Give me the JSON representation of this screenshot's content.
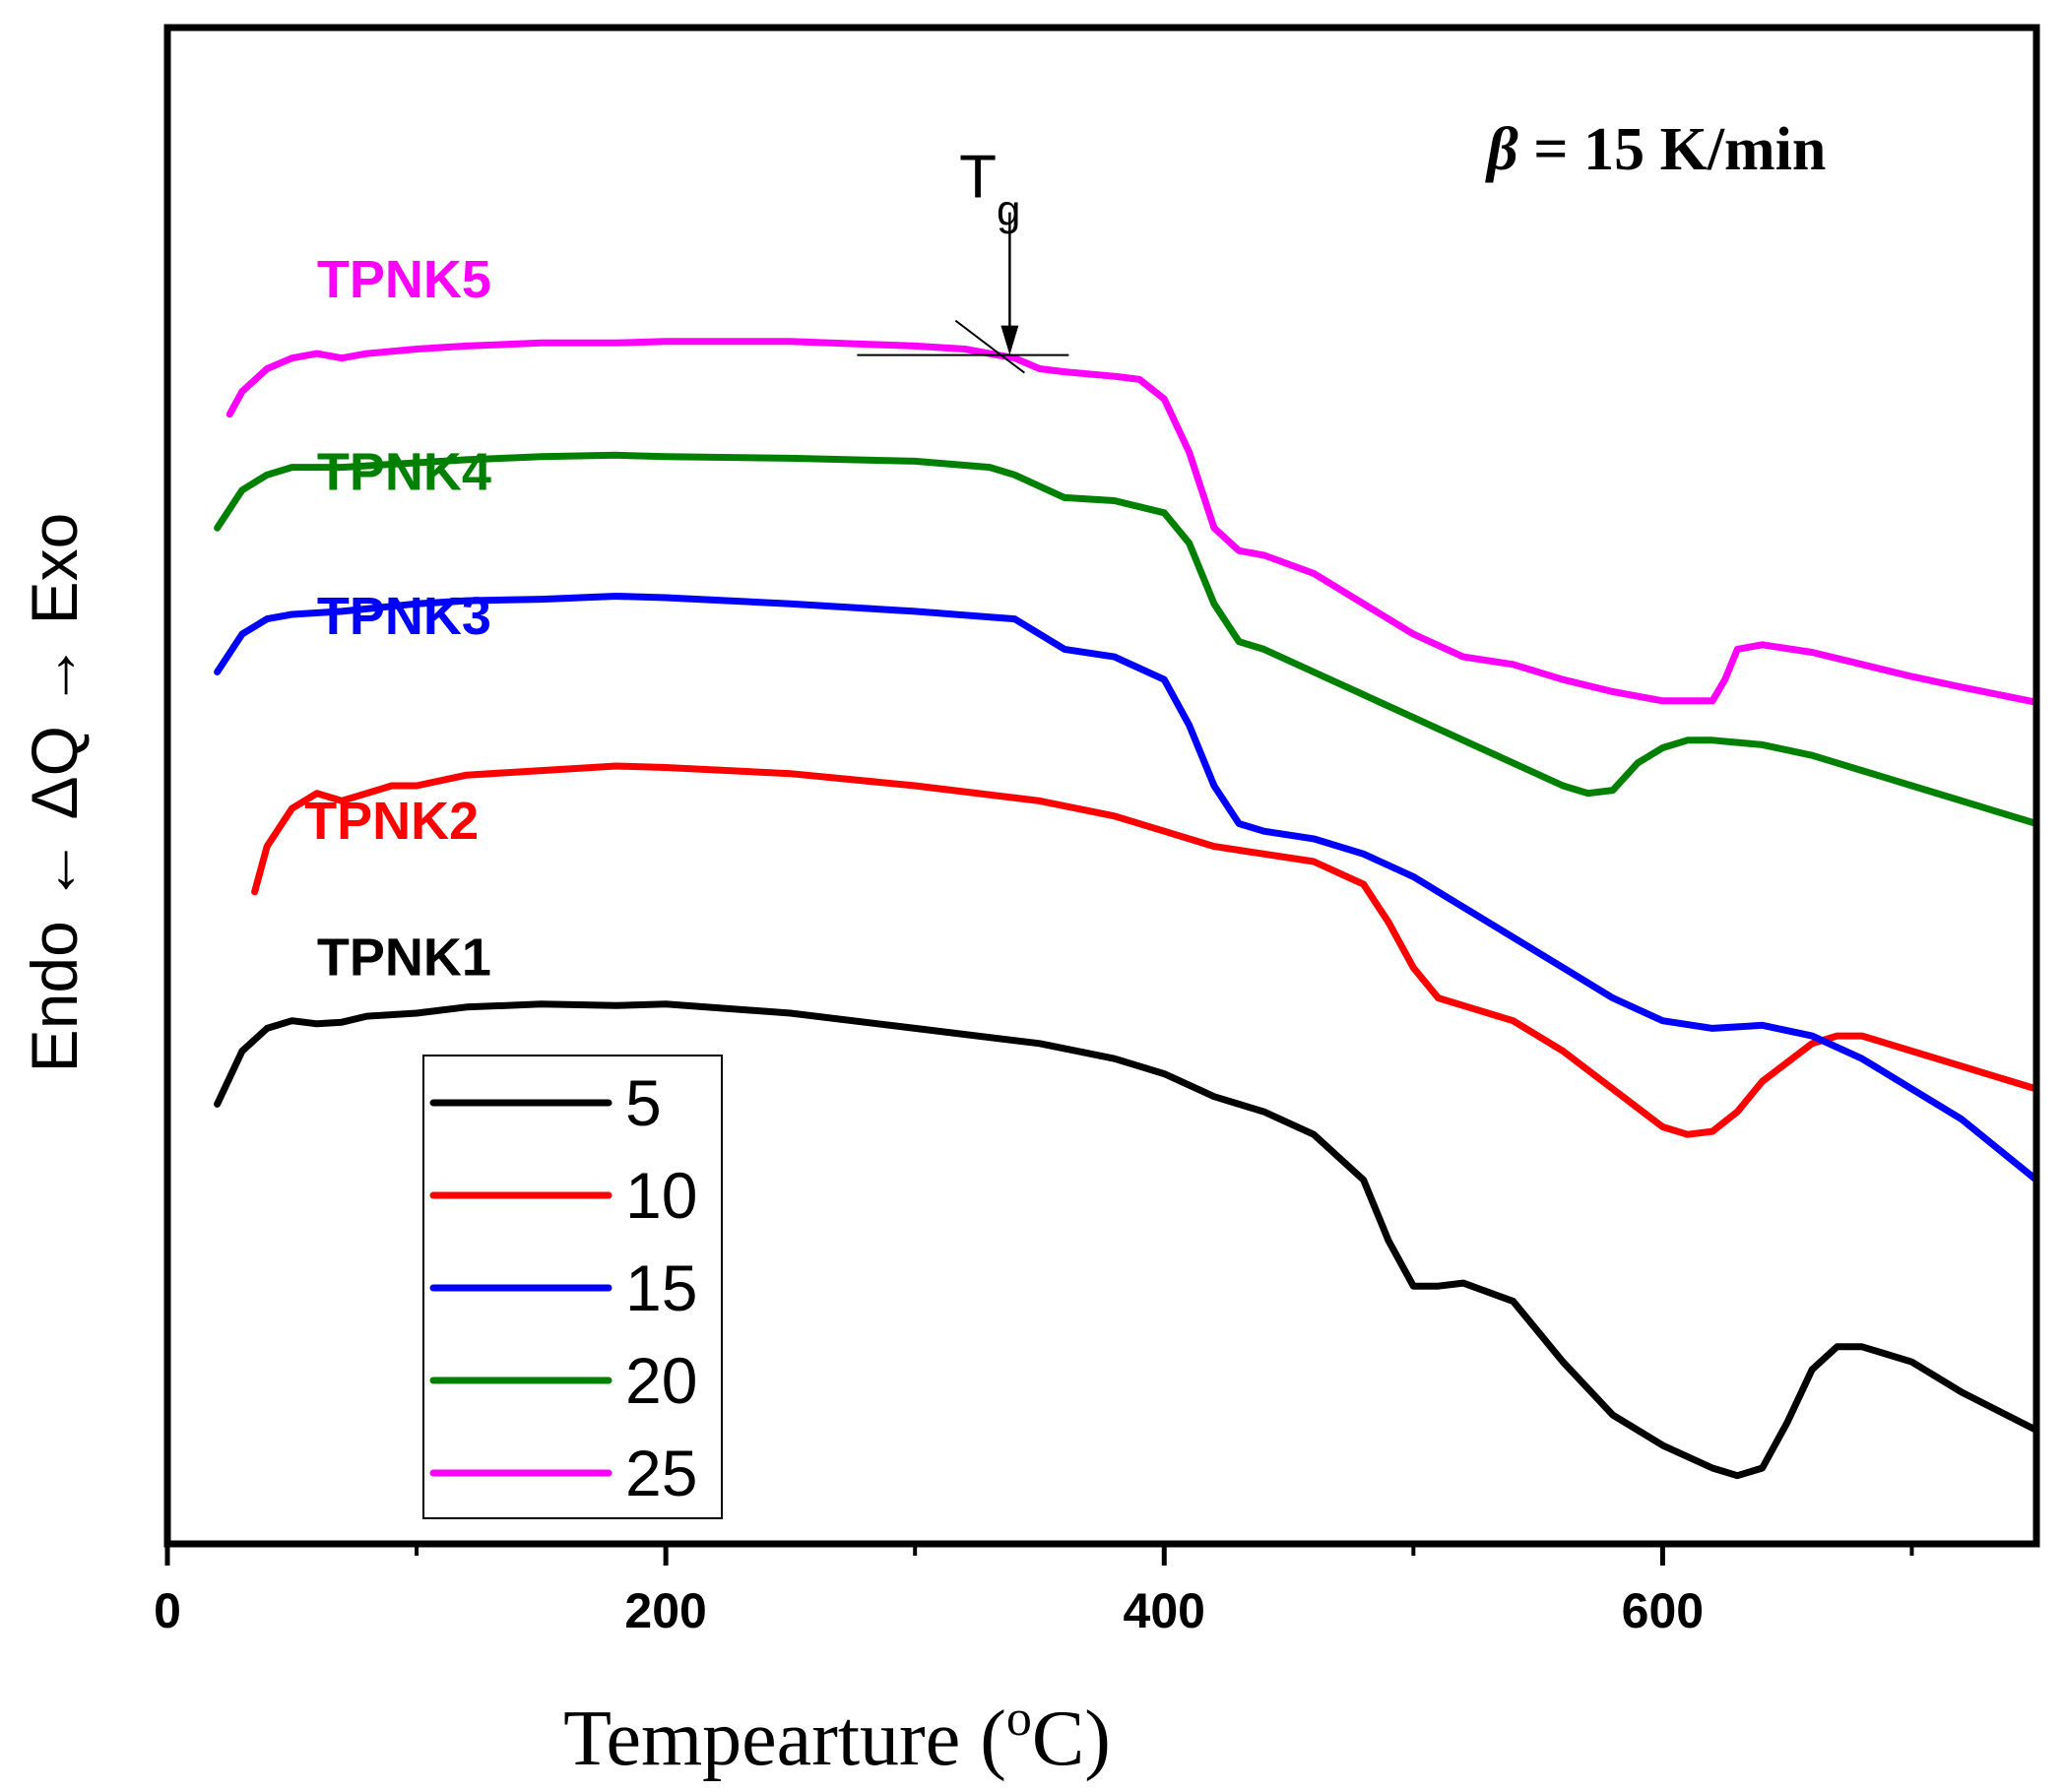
{
  "chart_data": {
    "type": "line",
    "title": "",
    "xlabel": "Tempearture (oC)",
    "xlabel_main": "Tempearture (",
    "xlabel_sup": "o",
    "xlabel_tail": "C)",
    "ylabel": "Endo ← ΔQ → Exo",
    "xlim": [
      0,
      750
    ],
    "x_ticks": [
      0,
      200,
      400,
      600
    ],
    "x_tick_labels": [
      "0",
      "200",
      "400",
      "600"
    ],
    "x_minor_ticks": [
      100,
      300,
      500,
      700
    ],
    "ylim": [
      0,
      1
    ],
    "y_ticks_shown": false,
    "annotation_beta": {
      "symbol": "β",
      "text": " = 15 K/min"
    },
    "annotation_tg": {
      "main": "T",
      "sub": "g",
      "x": 338,
      "y": 0.784
    },
    "legend": {
      "placement": "lower-left",
      "entries": [
        "5",
        "10",
        "15",
        "20",
        "25"
      ]
    },
    "series": [
      {
        "name": "5",
        "label": "TPNK1",
        "color": "#000000",
        "x": [
          20,
          30,
          40,
          50,
          60,
          70,
          80,
          100,
          120,
          150,
          180,
          200,
          250,
          300,
          350,
          380,
          400,
          420,
          440,
          460,
          480,
          490,
          500,
          510,
          520,
          540,
          560,
          580,
          600,
          620,
          630,
          640,
          650,
          660,
          670,
          680,
          700,
          720,
          750
        ],
        "y": [
          0.29,
          0.325,
          0.34,
          0.345,
          0.343,
          0.344,
          0.348,
          0.35,
          0.354,
          0.356,
          0.355,
          0.356,
          0.35,
          0.34,
          0.33,
          0.32,
          0.31,
          0.295,
          0.285,
          0.27,
          0.24,
          0.2,
          0.17,
          0.17,
          0.172,
          0.16,
          0.12,
          0.085,
          0.065,
          0.05,
          0.045,
          0.05,
          0.08,
          0.115,
          0.13,
          0.13,
          0.12,
          0.1,
          0.075
        ]
      },
      {
        "name": "10",
        "label": "TPNK2",
        "color": "#ff0000",
        "x": [
          35,
          40,
          50,
          60,
          70,
          80,
          90,
          100,
          120,
          150,
          180,
          200,
          250,
          300,
          350,
          380,
          400,
          420,
          440,
          460,
          480,
          490,
          500,
          510,
          520,
          540,
          560,
          580,
          600,
          610,
          620,
          630,
          640,
          660,
          670,
          680,
          700,
          720,
          750
        ],
        "y": [
          0.43,
          0.46,
          0.485,
          0.495,
          0.49,
          0.495,
          0.5,
          0.5,
          0.507,
          0.51,
          0.513,
          0.512,
          0.508,
          0.5,
          0.49,
          0.48,
          0.47,
          0.46,
          0.455,
          0.45,
          0.435,
          0.41,
          0.38,
          0.36,
          0.355,
          0.345,
          0.325,
          0.3,
          0.275,
          0.27,
          0.272,
          0.285,
          0.305,
          0.33,
          0.335,
          0.335,
          0.325,
          0.315,
          0.3
        ]
      },
      {
        "name": "15",
        "label": "TPNK3",
        "color": "#0000ff",
        "x": [
          20,
          30,
          40,
          50,
          70,
          100,
          120,
          150,
          180,
          200,
          250,
          300,
          340,
          360,
          380,
          400,
          410,
          420,
          430,
          440,
          460,
          480,
          500,
          520,
          540,
          560,
          580,
          600,
          620,
          640,
          660,
          680,
          700,
          720,
          750
        ],
        "y": [
          0.575,
          0.6,
          0.61,
          0.613,
          0.615,
          0.62,
          0.622,
          0.623,
          0.625,
          0.624,
          0.62,
          0.615,
          0.61,
          0.59,
          0.585,
          0.57,
          0.54,
          0.5,
          0.475,
          0.47,
          0.465,
          0.455,
          0.44,
          0.42,
          0.4,
          0.38,
          0.36,
          0.345,
          0.34,
          0.342,
          0.335,
          0.32,
          0.3,
          0.28,
          0.24
        ]
      },
      {
        "name": "20",
        "label": "TPNK4",
        "color": "#008000",
        "x": [
          20,
          30,
          40,
          50,
          70,
          100,
          120,
          150,
          180,
          200,
          250,
          300,
          330,
          340,
          360,
          380,
          400,
          410,
          420,
          430,
          440,
          460,
          480,
          500,
          520,
          540,
          560,
          570,
          580,
          590,
          600,
          610,
          620,
          640,
          660,
          680,
          700,
          720,
          750
        ],
        "y": [
          0.67,
          0.695,
          0.705,
          0.71,
          0.71,
          0.713,
          0.715,
          0.717,
          0.718,
          0.717,
          0.716,
          0.714,
          0.71,
          0.705,
          0.69,
          0.688,
          0.68,
          0.66,
          0.62,
          0.595,
          0.59,
          0.575,
          0.56,
          0.545,
          0.53,
          0.515,
          0.5,
          0.495,
          0.497,
          0.515,
          0.525,
          0.53,
          0.53,
          0.527,
          0.52,
          0.51,
          0.5,
          0.49,
          0.475
        ]
      },
      {
        "name": "25",
        "label": "TPNK5",
        "color": "#ff00ff",
        "x": [
          25,
          30,
          40,
          50,
          60,
          70,
          80,
          100,
          120,
          150,
          180,
          200,
          250,
          300,
          320,
          340,
          350,
          360,
          380,
          390,
          400,
          410,
          420,
          430,
          440,
          460,
          480,
          500,
          520,
          540,
          560,
          580,
          600,
          620,
          625,
          630,
          640,
          660,
          680,
          700,
          720,
          750
        ],
        "y": [
          0.745,
          0.76,
          0.775,
          0.782,
          0.785,
          0.782,
          0.785,
          0.788,
          0.79,
          0.792,
          0.792,
          0.793,
          0.793,
          0.79,
          0.788,
          0.782,
          0.775,
          0.773,
          0.77,
          0.768,
          0.755,
          0.72,
          0.67,
          0.655,
          0.652,
          0.64,
          0.62,
          0.6,
          0.585,
          0.58,
          0.57,
          0.562,
          0.556,
          0.556,
          0.57,
          0.59,
          0.593,
          0.588,
          0.58,
          0.572,
          0.565,
          0.555
        ]
      }
    ]
  }
}
